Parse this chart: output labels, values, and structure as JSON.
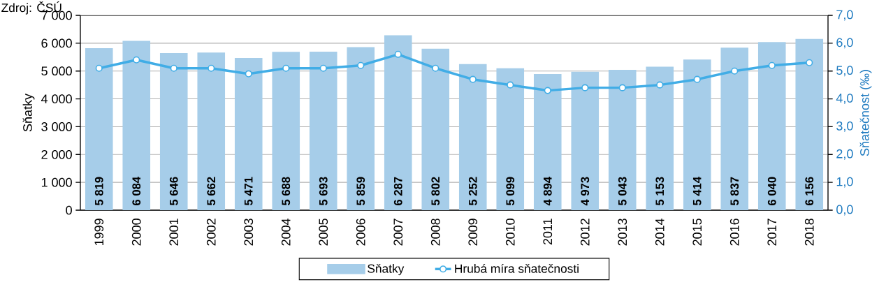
{
  "chart_data": {
    "type": "bar",
    "annotations": [
      "Zdroj: ČSÚ"
    ],
    "ylabel": "Sňatky",
    "y2label": "Sňatečnost (‰)",
    "categories": [
      "1999",
      "2000",
      "2001",
      "2002",
      "2003",
      "2004",
      "2005",
      "2006",
      "2007",
      "2008",
      "2009",
      "2010",
      "2011",
      "2012",
      "2013",
      "2014",
      "2015",
      "2016",
      "2017",
      "2018"
    ],
    "series": [
      {
        "name": "Sňatky",
        "color": "#a6cde9",
        "values": [
          5819,
          6084,
          5646,
          5662,
          5471,
          5688,
          5693,
          5859,
          6287,
          5802,
          5252,
          5099,
          4894,
          4973,
          5043,
          5153,
          5414,
          5837,
          6040,
          6156
        ],
        "value_labels": [
          "5 819",
          "6 084",
          "5 646",
          "5 662",
          "5 471",
          "5 688",
          "5 693",
          "5 859",
          "6 287",
          "5 802",
          "5 252",
          "5 099",
          "4 894",
          "4 973",
          "5 043",
          "5 153",
          "5 414",
          "5 837",
          "6 040",
          "6 156"
        ]
      },
      {
        "name": "Hrubá míra sňatečnosti",
        "type": "line",
        "axis": "y2",
        "color": "#41ade6",
        "marker": "circle",
        "values": [
          5.1,
          5.4,
          5.1,
          5.1,
          4.9,
          5.1,
          5.1,
          5.2,
          5.6,
          5.1,
          4.7,
          4.5,
          4.3,
          4.4,
          4.4,
          4.5,
          4.7,
          5.0,
          5.2,
          5.3
        ]
      }
    ],
    "ylim": [
      0,
      7000
    ],
    "yticks": [
      0,
      {
        "value": 1000,
        "label": "1 000"
      },
      {
        "value": 2000,
        "label": "2 000"
      },
      {
        "value": 3000,
        "label": "3 000"
      },
      {
        "value": 4000,
        "label": "4 000"
      },
      {
        "value": 5000,
        "label": "5 000"
      },
      {
        "value": 6000,
        "label": "6 000"
      },
      {
        "value": 7000,
        "label": "7 000"
      }
    ],
    "y2lim": [
      0,
      7
    ],
    "y2ticks": [
      {
        "value": 0,
        "label": "0,0"
      },
      {
        "value": 1,
        "label": "1,0"
      },
      {
        "value": 2,
        "label": "2,0"
      },
      {
        "value": 3,
        "label": "3,0"
      },
      {
        "value": 4,
        "label": "4,0"
      },
      {
        "value": 5,
        "label": "5,0"
      },
      {
        "value": 6,
        "label": "6,0"
      },
      {
        "value": 7,
        "label": "7,0"
      }
    ],
    "grid": "y",
    "legend": "bottom"
  }
}
